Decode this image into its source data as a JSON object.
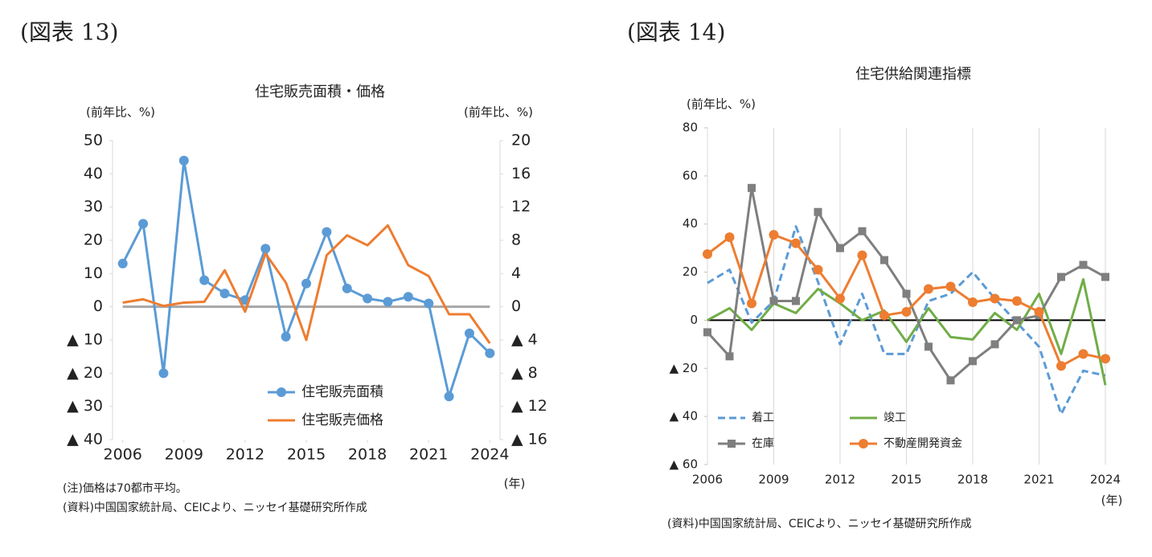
{
  "chart_data": [
    {
      "type": "line",
      "label": "(図表 13)",
      "title": "住宅販売面積・価格",
      "ylabel": "(前年比、%)",
      "y2label": "(前年比、%)",
      "xunit": "(年)",
      "notes": [
        "(注)価格は70都市平均。",
        "(資料)中国国家統計局、CEICより、ニッセイ基礎研究所作成"
      ],
      "x": [
        2006,
        2007,
        2008,
        2009,
        2010,
        2011,
        2012,
        2013,
        2014,
        2015,
        2016,
        2017,
        2018,
        2019,
        2020,
        2021,
        2022,
        2023,
        2024
      ],
      "xlim": [
        2005.5,
        2024.5
      ],
      "xticks": [
        2006,
        2009,
        2012,
        2015,
        2018,
        2021,
        2024
      ],
      "ylim": [
        -40,
        50
      ],
      "yticks": [
        {
          "value": -40,
          "label": "▲ 40"
        },
        {
          "value": -30,
          "label": "▲ 30"
        },
        {
          "value": -20,
          "label": "▲ 20"
        },
        {
          "value": -10,
          "label": "▲ 10"
        },
        0,
        10,
        20,
        30,
        40,
        50
      ],
      "y2lim": [
        -16,
        20
      ],
      "y2ticks": [
        {
          "value": -16,
          "label": "▲ 16"
        },
        {
          "value": -12,
          "label": "▲ 12"
        },
        {
          "value": -8,
          "label": "▲ 8"
        },
        {
          "value": -4,
          "label": "▲ 4"
        },
        0,
        4,
        8,
        12,
        16,
        20
      ],
      "grid": "none",
      "series": [
        {
          "name": "住宅販売面積",
          "color": "#5b9bd5",
          "marker": "circle",
          "values": [
            13,
            25,
            -20,
            44,
            8,
            4,
            2,
            17.5,
            -9,
            7,
            22.5,
            5.5,
            2.5,
            1.5,
            3,
            1,
            -27,
            -8,
            -14
          ]
        },
        {
          "name": "住宅販売価格",
          "color": "#ed7d31",
          "axis": "y2",
          "values": [
            0.5,
            0.9,
            0.1,
            0.5,
            0.6,
            4.4,
            -0.6,
            6.4,
            2.9,
            -4,
            6.2,
            8.6,
            7.4,
            9.8,
            5,
            3.7,
            -0.9,
            -0.9,
            -4.4
          ]
        }
      ]
    },
    {
      "type": "line",
      "label": "(図表 14)",
      "title": "住宅供給関連指標",
      "ylabel": "(前年比、%)",
      "xunit": "(年)",
      "notes": [
        "(資料)中国国家統計局、CEICより、ニッセイ基礎研究所作成"
      ],
      "x": [
        2006,
        2007,
        2008,
        2009,
        2010,
        2011,
        2012,
        2013,
        2014,
        2015,
        2016,
        2017,
        2018,
        2019,
        2020,
        2021,
        2022,
        2023,
        2024
      ],
      "xlim": [
        2006,
        2024
      ],
      "xticks": [
        2006,
        2009,
        2012,
        2015,
        2018,
        2021,
        2024
      ],
      "ylim": [
        -60,
        80
      ],
      "yticks": [
        {
          "value": -60,
          "label": "▲ 60"
        },
        {
          "value": -40,
          "label": "▲ 40"
        },
        {
          "value": -20,
          "label": "▲ 20"
        },
        0,
        20,
        40,
        60,
        80
      ],
      "grid": "x",
      "series": [
        {
          "name": "着工",
          "color": "#5b9bd5",
          "dash": true,
          "values": [
            15.5,
            21,
            -1,
            8,
            39,
            16,
            -10,
            11,
            -14,
            -14,
            8,
            11,
            20,
            9,
            -1,
            -11,
            -39,
            -21,
            -23
          ]
        },
        {
          "name": "竣工",
          "color": "#70ad47",
          "values": [
            0,
            5,
            -4,
            7,
            3,
            13,
            7,
            0,
            4,
            -9,
            5,
            -7,
            -8,
            3,
            -4,
            11,
            -14,
            17,
            -27
          ]
        },
        {
          "name": "在庫",
          "color": "#7f7f7f",
          "marker": "square",
          "values": [
            -5,
            -15,
            55,
            8,
            8,
            45,
            30,
            37,
            25,
            11,
            -11,
            -25,
            -17,
            -10,
            0,
            2,
            18,
            23,
            18
          ]
        },
        {
          "name": "不動産開発資金",
          "color": "#ed7d31",
          "marker": "circle",
          "values": [
            27.5,
            34.5,
            7,
            35.5,
            32,
            21,
            9,
            27,
            2,
            3.5,
            13,
            14,
            7.5,
            9,
            8,
            3.5,
            -19,
            -14,
            -16
          ]
        }
      ]
    }
  ]
}
